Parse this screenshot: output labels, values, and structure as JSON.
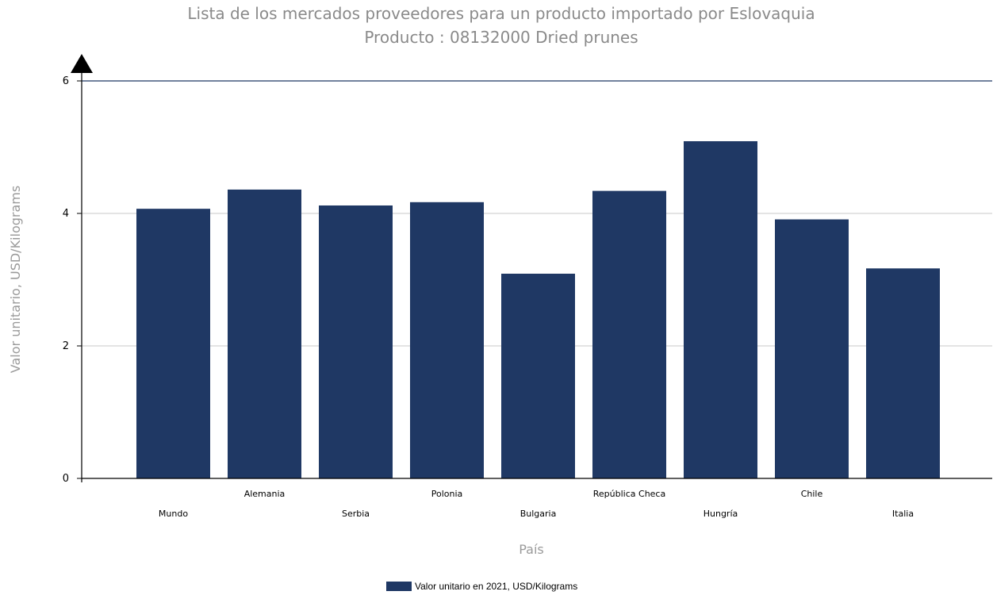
{
  "chart_data": {
    "type": "bar",
    "title": "Lista de los mercados proveedores para un producto importado por Eslovaquia",
    "subtitle": "Producto : 08132000 Dried prunes",
    "xlabel": "País",
    "ylabel": "Valor unitario, USD/Kilograms",
    "categories": [
      "Mundo",
      "Alemania",
      "Serbia",
      "Polonia",
      "Bulgaria",
      "República Checa",
      "Hungría",
      "Chile",
      "Italia"
    ],
    "series": [
      {
        "name": "Valor unitario en 2021, USD/Kilograms",
        "values": [
          4.07,
          4.36,
          4.12,
          4.17,
          3.09,
          4.34,
          5.09,
          3.91,
          3.17
        ]
      }
    ],
    "ylim": [
      0,
      6
    ],
    "yticks": [
      "0",
      "2",
      "4",
      "6"
    ],
    "grid": true,
    "legend_position": "bottom-center",
    "colors": {
      "bar": "#1f3864",
      "grid": "#c8c8c8",
      "axis": "#000000",
      "top_border": "#1f3864"
    }
  }
}
